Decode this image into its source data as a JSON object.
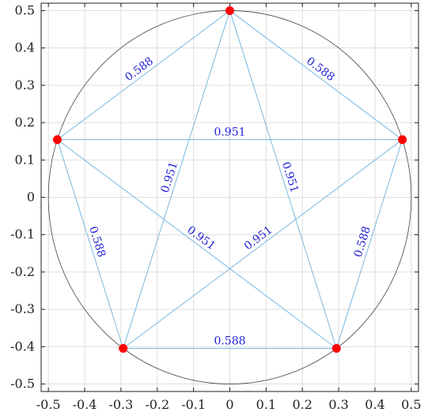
{
  "chart_data": {
    "type": "scatter",
    "xlim": [
      -0.52,
      0.52
    ],
    "ylim": [
      -0.52,
      0.52
    ],
    "x_ticks": [
      "-0.5",
      "-0.4",
      "-0.3",
      "-0.2",
      "-0.1",
      "0",
      "0.1",
      "0.2",
      "0.3",
      "0.4",
      "0.5"
    ],
    "x_tick_values": [
      -0.5,
      -0.4,
      -0.3,
      -0.2,
      -0.1,
      0,
      0.1,
      0.2,
      0.3,
      0.4,
      0.5
    ],
    "y_ticks": [
      "0.5",
      "0.4",
      "0.3",
      "0.2",
      "0.1",
      "0",
      "-0.1",
      "-0.2",
      "-0.3",
      "-0.4",
      "-0.5"
    ],
    "y_tick_values": [
      0.5,
      0.4,
      0.3,
      0.2,
      0.1,
      0,
      -0.1,
      -0.2,
      -0.3,
      -0.4,
      -0.5
    ],
    "grid": true,
    "circle": {
      "cx": 0,
      "cy": 0,
      "r": 0.5
    },
    "points": [
      {
        "x": 0.0,
        "y": 0.5
      },
      {
        "x": 0.4755,
        "y": 0.1545
      },
      {
        "x": 0.2939,
        "y": -0.4045
      },
      {
        "x": -0.2939,
        "y": -0.4045
      },
      {
        "x": -0.4755,
        "y": 0.1545
      }
    ],
    "edges": [
      {
        "from": 0,
        "to": 1,
        "label": "0.588"
      },
      {
        "from": 1,
        "to": 2,
        "label": "0.588"
      },
      {
        "from": 2,
        "to": 3,
        "label": "0.588"
      },
      {
        "from": 3,
        "to": 4,
        "label": "0.588"
      },
      {
        "from": 4,
        "to": 0,
        "label": "0.588"
      },
      {
        "from": 0,
        "to": 2,
        "label": "0.951"
      },
      {
        "from": 0,
        "to": 3,
        "label": "0.951"
      },
      {
        "from": 1,
        "to": 3,
        "label": "0.951"
      },
      {
        "from": 1,
        "to": 4,
        "label": "0.951"
      },
      {
        "from": 2,
        "to": 4,
        "label": "0.951"
      }
    ],
    "colors": {
      "point": "#ff0000",
      "edge": "#7ab8e0",
      "label": "#1f1fd6",
      "circle": "#444444",
      "grid": "#dddddd",
      "axes": "#222222"
    }
  }
}
